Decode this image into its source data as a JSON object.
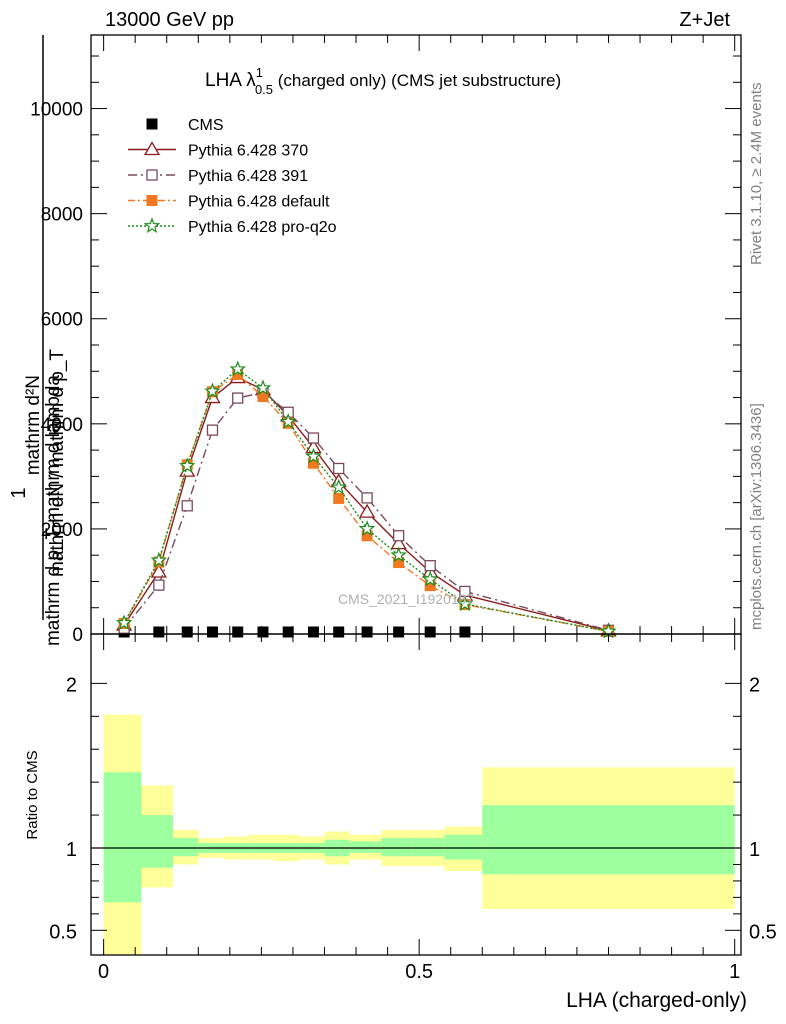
{
  "header": {
    "left": "13000 GeV pp",
    "right": "Z+Jet",
    "side_right_top": "Rivet 3.1.10, ≥ 2.4M events",
    "side_right_bottom": "mcplots.cern.ch [arXiv:1306.3436]",
    "watermark": "CMS_2021_I1920187"
  },
  "chart_data": [
    {
      "type": "line",
      "panel": "main",
      "title_main": "LHA λ",
      "title_sup": "1",
      "title_sub": "0.5",
      "title_rest": " (charged only) (CMS jet substructure)",
      "ylabel_top": "mathrm d²N",
      "ylabel_top_den": "mathrm d p_T mathrm d lambda",
      "ylabel_bottom": "mathrm dN / mathrm d p_T",
      "ylabel_one": "1",
      "xlim": [
        -0.02,
        1.01
      ],
      "ylim": [
        0,
        11400
      ],
      "y_ticks": [
        0,
        2000,
        4000,
        6000,
        8000,
        10000
      ],
      "y_tick_labels": [
        "0",
        "2000",
        "4000",
        "6000",
        "8000",
        "10000"
      ],
      "legend_position": "top-left",
      "series": [
        {
          "name": "CMS",
          "color": "#000000",
          "marker": "filled-square",
          "x": [
            0.0325,
            0.0875,
            0.1325,
            0.1725,
            0.2125,
            0.2525,
            0.2925,
            0.3325,
            0.3725,
            0.4175,
            0.4675,
            0.5175,
            0.5725
          ],
          "y": [
            20,
            20,
            20,
            20,
            20,
            20,
            20,
            20,
            20,
            20,
            20,
            20,
            20
          ]
        },
        {
          "name": "Pythia 6.428 370",
          "color": "#8b1a1a",
          "marker": "open-triangle",
          "x": [
            0.0325,
            0.0875,
            0.1325,
            0.1725,
            0.2125,
            0.2525,
            0.2925,
            0.3325,
            0.3725,
            0.4175,
            0.4675,
            0.5175,
            0.5725,
            0.8
          ],
          "y": [
            170,
            1180,
            3100,
            4500,
            4880,
            4650,
            4150,
            3550,
            2900,
            2320,
            1720,
            1180,
            740,
            60
          ]
        },
        {
          "name": "Pythia 6.428 391",
          "color": "#7a4a5a",
          "marker": "open-square",
          "x": [
            0.0325,
            0.0875,
            0.1325,
            0.1725,
            0.2125,
            0.2525,
            0.2925,
            0.3325,
            0.3725,
            0.4175,
            0.4675,
            0.5175,
            0.5725,
            0.8
          ],
          "y": [
            110,
            930,
            2440,
            3880,
            4490,
            4600,
            4220,
            3730,
            3150,
            2590,
            1870,
            1300,
            810,
            70
          ]
        },
        {
          "name": "Pythia 6.428 default",
          "color": "#f07820",
          "marker": "filled-square",
          "x": [
            0.0325,
            0.0875,
            0.1325,
            0.1725,
            0.2125,
            0.2525,
            0.2925,
            0.3325,
            0.3725,
            0.4175,
            0.4675,
            0.5175,
            0.5725,
            0.8
          ],
          "y": [
            200,
            1370,
            3220,
            4610,
            4940,
            4520,
            4010,
            3250,
            2580,
            1870,
            1360,
            920,
            560,
            50
          ]
        },
        {
          "name": "Pythia 6.428 pro-q2o",
          "color": "#1a8c1a",
          "marker": "open-star",
          "x": [
            0.0325,
            0.0875,
            0.1325,
            0.1725,
            0.2125,
            0.2525,
            0.2925,
            0.3325,
            0.3725,
            0.4175,
            0.4675,
            0.5175,
            0.5725,
            0.8
          ],
          "y": [
            210,
            1400,
            3200,
            4620,
            5040,
            4680,
            4040,
            3380,
            2790,
            2000,
            1500,
            1040,
            570,
            50
          ]
        }
      ]
    },
    {
      "type": "area",
      "panel": "ratio",
      "ylabel": "Ratio to CMS",
      "xlabel": "LHA (charged-only)",
      "xlim": [
        -0.02,
        1.01
      ],
      "ylim": [
        0.35,
        2.3
      ],
      "y_ticks": [
        0.5,
        1,
        2
      ],
      "y_tick_labels": [
        "0.5",
        "1",
        "2"
      ],
      "x_ticks": [
        0,
        0.5,
        1
      ],
      "x_tick_labels": [
        "0",
        "0.5",
        "1"
      ],
      "reference_line": 1,
      "bins": [
        {
          "lo": 0.0,
          "hi": 0.06,
          "stat_lo": 0.67,
          "stat_hi": 1.46,
          "tot_lo": 0.32,
          "tot_hi": 1.81
        },
        {
          "lo": 0.06,
          "hi": 0.11,
          "stat_lo": 0.88,
          "stat_hi": 1.2,
          "tot_lo": 0.76,
          "tot_hi": 1.38
        },
        {
          "lo": 0.11,
          "hi": 0.15,
          "stat_lo": 0.95,
          "stat_hi": 1.06,
          "tot_lo": 0.9,
          "tot_hi": 1.11
        },
        {
          "lo": 0.15,
          "hi": 0.19,
          "stat_lo": 0.97,
          "stat_hi": 1.03,
          "tot_lo": 0.94,
          "tot_hi": 1.06
        },
        {
          "lo": 0.19,
          "hi": 0.23,
          "stat_lo": 0.97,
          "stat_hi": 1.03,
          "tot_lo": 0.93,
          "tot_hi": 1.07
        },
        {
          "lo": 0.23,
          "hi": 0.27,
          "stat_lo": 0.97,
          "stat_hi": 1.03,
          "tot_lo": 0.93,
          "tot_hi": 1.08
        },
        {
          "lo": 0.27,
          "hi": 0.31,
          "stat_lo": 0.97,
          "stat_hi": 1.03,
          "tot_lo": 0.92,
          "tot_hi": 1.08
        },
        {
          "lo": 0.31,
          "hi": 0.35,
          "stat_lo": 0.97,
          "stat_hi": 1.03,
          "tot_lo": 0.93,
          "tot_hi": 1.07
        },
        {
          "lo": 0.35,
          "hi": 0.39,
          "stat_lo": 0.95,
          "stat_hi": 1.05,
          "tot_lo": 0.9,
          "tot_hi": 1.1
        },
        {
          "lo": 0.39,
          "hi": 0.44,
          "stat_lo": 0.97,
          "stat_hi": 1.04,
          "tot_lo": 0.93,
          "tot_hi": 1.08
        },
        {
          "lo": 0.44,
          "hi": 0.49,
          "stat_lo": 0.95,
          "stat_hi": 1.06,
          "tot_lo": 0.89,
          "tot_hi": 1.11
        },
        {
          "lo": 0.49,
          "hi": 0.54,
          "stat_lo": 0.95,
          "stat_hi": 1.06,
          "tot_lo": 0.89,
          "tot_hi": 1.11
        },
        {
          "lo": 0.54,
          "hi": 0.6,
          "stat_lo": 0.93,
          "stat_hi": 1.08,
          "tot_lo": 0.86,
          "tot_hi": 1.13
        },
        {
          "lo": 0.6,
          "hi": 1.0,
          "stat_lo": 0.84,
          "stat_hi": 1.26,
          "tot_lo": 0.63,
          "tot_hi": 1.49
        }
      ]
    }
  ],
  "colors": {
    "band_stat": "#9dff9d",
    "band_total": "#ffff99",
    "frame": "#000000",
    "side_text": "#808080"
  }
}
